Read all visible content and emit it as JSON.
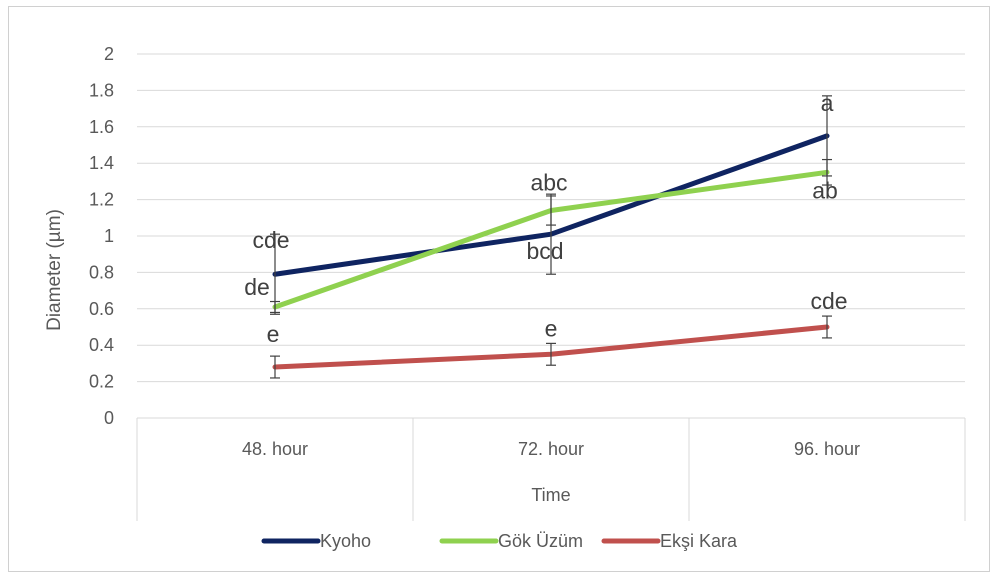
{
  "chart_data": {
    "type": "line",
    "title": "",
    "xlabel": "Time",
    "ylabel": "Diameter (µm)",
    "ylim": [
      0,
      2
    ],
    "yticks": [
      "0",
      "0.2",
      "0.4",
      "0.6",
      "0.8",
      "1",
      "1.2",
      "1.4",
      "1.6",
      "1.8",
      "2"
    ],
    "categories": [
      "48. hour",
      "72. hour",
      "96. hour"
    ],
    "grid": true,
    "legend_position": "bottom",
    "series": [
      {
        "name": "Kyoho",
        "color": "#0f2461",
        "values": [
          0.79,
          1.01,
          1.55
        ],
        "errors": [
          0.22,
          0.22,
          0.22
        ],
        "labels": [
          "cde",
          "bcd",
          "a"
        ]
      },
      {
        "name": "Gök Üzüm",
        "color": "#8fd14f",
        "values": [
          0.61,
          1.14,
          1.35
        ],
        "errors": [
          0.03,
          0.08,
          0.07
        ],
        "labels": [
          "de",
          "abc",
          "ab"
        ]
      },
      {
        "name": "Ekşi Kara",
        "color": "#c0504d",
        "values": [
          0.28,
          0.35,
          0.5
        ],
        "errors": [
          0.06,
          0.06,
          0.06
        ],
        "labels": [
          "e",
          "e",
          "cde"
        ]
      }
    ]
  }
}
